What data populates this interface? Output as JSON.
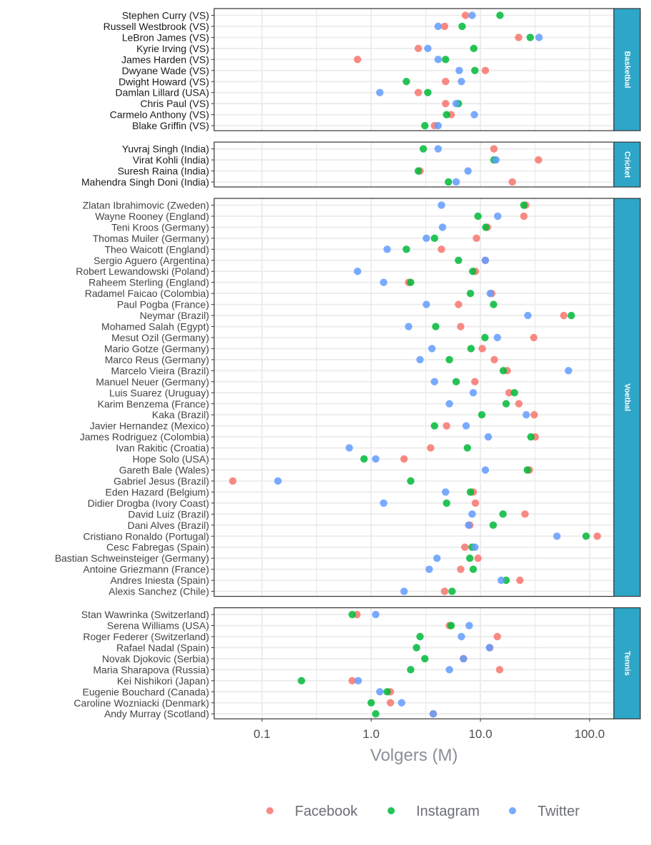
{
  "chart_data": {
    "type": "scatter",
    "title": "",
    "xlabel": "Volgers (M)",
    "ylabel": "",
    "x_scale": "log10",
    "xlim": [
      0.037,
      171
    ],
    "x_ticks": [
      0.1,
      1,
      10,
      100
    ],
    "x_tick_labels": [
      "0.1",
      "1.0",
      "10.0",
      "100.0"
    ],
    "grid": true,
    "legend_position": "bottom",
    "series": [
      {
        "name": "Facebook",
        "key": "facebook",
        "color": "#F8766D"
      },
      {
        "name": "Instagram",
        "key": "instagram",
        "color": "#00BA38"
      },
      {
        "name": "Twitter",
        "key": "twitter",
        "color": "#619CFF"
      }
    ],
    "strip_color": "#2EA6C7",
    "panels": [
      {
        "name": "Basketbal",
        "athletes": [
          {
            "name": "Stephen Curry (VS)",
            "facebook": 7.3,
            "instagram": 15.1,
            "twitter": 8.4
          },
          {
            "name": "Russell Westbrook (VS)",
            "facebook": 4.7,
            "instagram": 6.8,
            "twitter": 4.1
          },
          {
            "name": "LeBron James (VS)",
            "facebook": 22.4,
            "instagram": 28.6,
            "twitter": 34.4
          },
          {
            "name": "Kyrie Irving (VS)",
            "facebook": 2.7,
            "instagram": 8.7,
            "twitter": 3.3
          },
          {
            "name": "James Harden (VS)",
            "facebook": 0.75,
            "instagram": 4.8,
            "twitter": 4.1
          },
          {
            "name": "Dwyane Wade (VS)",
            "facebook": 11.1,
            "instagram": 8.9,
            "twitter": 6.4
          },
          {
            "name": "Dwight Howard (VS)",
            "facebook": 4.8,
            "instagram": 2.1,
            "twitter": 6.7
          },
          {
            "name": "Damlan Lillard (USA)",
            "facebook": 2.7,
            "instagram": 3.3,
            "twitter": 1.2
          },
          {
            "name": "Chris Paul (VS)",
            "facebook": 4.8,
            "instagram": 6.3,
            "twitter": 6.0
          },
          {
            "name": "Carmelo Anthony (VS)",
            "facebook": 5.4,
            "instagram": 4.9,
            "twitter": 8.8
          },
          {
            "name": "Blake Griffin (VS)",
            "facebook": 3.8,
            "instagram": 3.1,
            "twitter": 4.1
          }
        ]
      },
      {
        "name": "Cricket",
        "athletes": [
          {
            "name": "Yuvraj Singh (India)",
            "facebook": 13.3,
            "instagram": 3.0,
            "twitter": 4.1
          },
          {
            "name": "Virat Kohli (India)",
            "facebook": 34.0,
            "instagram": 13.3,
            "twitter": 13.9
          },
          {
            "name": "Suresh Raina (India)",
            "facebook": 2.8,
            "instagram": 2.7,
            "twitter": 7.7
          },
          {
            "name": "Mahendra Singh Doni (India)",
            "facebook": 19.6,
            "instagram": 5.1,
            "twitter": 6.0
          }
        ]
      },
      {
        "name": "Voetbal",
        "athletes": [
          {
            "name": "Zlatan Ibrahimovic (Zweden)",
            "facebook": 26,
            "instagram": 25,
            "twitter": 4.4
          },
          {
            "name": "Wayne Rooney (England)",
            "facebook": 25,
            "instagram": 9.5,
            "twitter": 14.4
          },
          {
            "name": "Teni Kroos (Germany)",
            "facebook": 11.6,
            "instagram": 11.2,
            "twitter": 4.5
          },
          {
            "name": "Thomas Muiler (Germany)",
            "facebook": 9.2,
            "instagram": 3.8,
            "twitter": 3.2
          },
          {
            "name": "Theo Waicott (England)",
            "facebook": 4.4,
            "instagram": 2.1,
            "twitter": 1.4
          },
          {
            "name": "Sergio Aguero (Argentina)",
            "facebook": 11.1,
            "instagram": 6.3,
            "twitter": 11.1
          },
          {
            "name": "Robert Lewandowski (Poland)",
            "facebook": 9.0,
            "instagram": 8.5,
            "twitter": 0.75
          },
          {
            "name": "Raheem Sterling (England)",
            "facebook": 2.2,
            "instagram": 2.3,
            "twitter": 1.3
          },
          {
            "name": "Radamel Faicao (Colombia)",
            "facebook": 12.7,
            "instagram": 8.1,
            "twitter": 12.3
          },
          {
            "name": "Paul Pogba (France)",
            "facebook": 6.3,
            "instagram": 13.2,
            "twitter": 3.2
          },
          {
            "name": "Neymar (Brazil)",
            "facebook": 58,
            "instagram": 68,
            "twitter": 27.2
          },
          {
            "name": "Mohamed Salah (Egypt)",
            "facebook": 6.6,
            "instagram": 3.9,
            "twitter": 2.2
          },
          {
            "name": "Mesut Ozil (Germany)",
            "facebook": 30.8,
            "instagram": 11.0,
            "twitter": 14.3
          },
          {
            "name": "Mario Gotze (Germany)",
            "facebook": 10.4,
            "instagram": 8.2,
            "twitter": 3.6
          },
          {
            "name": "Marco Reus (Germany)",
            "facebook": 13.4,
            "instagram": 5.2,
            "twitter": 2.8
          },
          {
            "name": "Marcelo Vieira (Brazil)",
            "facebook": 17.6,
            "instagram": 16.2,
            "twitter": 64
          },
          {
            "name": "Manuel Neuer (Germany)",
            "facebook": 8.9,
            "instagram": 6.0,
            "twitter": 3.8
          },
          {
            "name": "Luis Suarez (Uruguay)",
            "facebook": 18.3,
            "instagram": 20.5,
            "twitter": 8.6
          },
          {
            "name": "Karim Benzema (France)",
            "facebook": 22.5,
            "instagram": 17.2,
            "twitter": 5.2
          },
          {
            "name": "Kaka (Brazil)",
            "facebook": 31.1,
            "instagram": 10.3,
            "twitter": 26.3
          },
          {
            "name": "Javier Hernandez (Mexico)",
            "facebook": 4.9,
            "instagram": 3.8,
            "twitter": 7.4
          },
          {
            "name": "James Rodriguez (Colombia)",
            "facebook": 31.8,
            "instagram": 29,
            "twitter": 11.8
          },
          {
            "name": "Ivan Rakitic (Croatia)",
            "facebook": 3.5,
            "instagram": 7.6,
            "twitter": 0.63
          },
          {
            "name": "Hope Solo (USA)",
            "facebook": 2.0,
            "instagram": 0.86,
            "twitter": 1.1
          },
          {
            "name": "Gareth Bale (Wales)",
            "facebook": 28.1,
            "instagram": 26.9,
            "twitter": 11.1
          },
          {
            "name": "Gabriel Jesus (Brazil)",
            "facebook": 0.054,
            "instagram": 2.3,
            "twitter": 0.14
          },
          {
            "name": "Eden Hazard (Belgium)",
            "facebook": 8.6,
            "instagram": 8.1,
            "twitter": 4.8
          },
          {
            "name": "Didier Drogba (Ivory Coast)",
            "facebook": 9.0,
            "instagram": 4.9,
            "twitter": 1.3
          },
          {
            "name": "David Luiz (Brazil)",
            "facebook": 25.6,
            "instagram": 16.1,
            "twitter": 8.4
          },
          {
            "name": "Dani Alves (Brazil)",
            "facebook": 8.0,
            "instagram": 13.1,
            "twitter": 7.8
          },
          {
            "name": "Cristiano Ronaldo (Portugal)",
            "facebook": 117.5,
            "instagram": 92.8,
            "twitter": 50.2
          },
          {
            "name": "Cesc Fabregas (Spain)",
            "facebook": 7.2,
            "instagram": 8.4,
            "twitter": 8.9
          },
          {
            "name": "Bastian Schweinsteiger (Germany)",
            "facebook": 9.5,
            "instagram": 8.0,
            "twitter": 4.0
          },
          {
            "name": "Antoine Griezmann (France)",
            "facebook": 6.6,
            "instagram": 8.6,
            "twitter": 3.4
          },
          {
            "name": "Andres Iniesta (Spain)",
            "facebook": 23.0,
            "instagram": 17.2,
            "twitter": 15.5
          },
          {
            "name": "Alexis Sanchez (Chile)",
            "facebook": 4.7,
            "instagram": 5.5,
            "twitter": 2.0
          }
        ]
      },
      {
        "name": "Tennis",
        "athletes": [
          {
            "name": "Stan Wawrinka (Switzerland)",
            "facebook": 0.74,
            "instagram": 0.67,
            "twitter": 1.1
          },
          {
            "name": "Serena Williams (USA)",
            "facebook": 5.2,
            "instagram": 5.4,
            "twitter": 7.9
          },
          {
            "name": "Roger Federer (Switzerland)",
            "facebook": 14.3,
            "instagram": 2.8,
            "twitter": 6.7
          },
          {
            "name": "Rafael Nadal (Spain)",
            "facebook": 12.2,
            "instagram": 2.6,
            "twitter": 12.1
          },
          {
            "name": "Novak Djokovic (Serbia)",
            "facebook": 7.0,
            "instagram": 3.1,
            "twitter": 7.0
          },
          {
            "name": "Maria Sharapova (Russia)",
            "facebook": 15.0,
            "instagram": 2.3,
            "twitter": 5.2
          },
          {
            "name": "Kei Nishikori (Japan)",
            "facebook": 0.67,
            "instagram": 0.23,
            "twitter": 0.76
          },
          {
            "name": "Eugenie Bouchard (Canada)",
            "facebook": 1.5,
            "instagram": 1.4,
            "twitter": 1.2
          },
          {
            "name": "Caroline Wozniacki (Denmark)",
            "facebook": 1.5,
            "instagram": 1.0,
            "twitter": 1.9
          },
          {
            "name": "Andy Murray (Scotland)",
            "facebook": 3.7,
            "instagram": 1.1,
            "twitter": 3.7
          }
        ]
      }
    ]
  }
}
